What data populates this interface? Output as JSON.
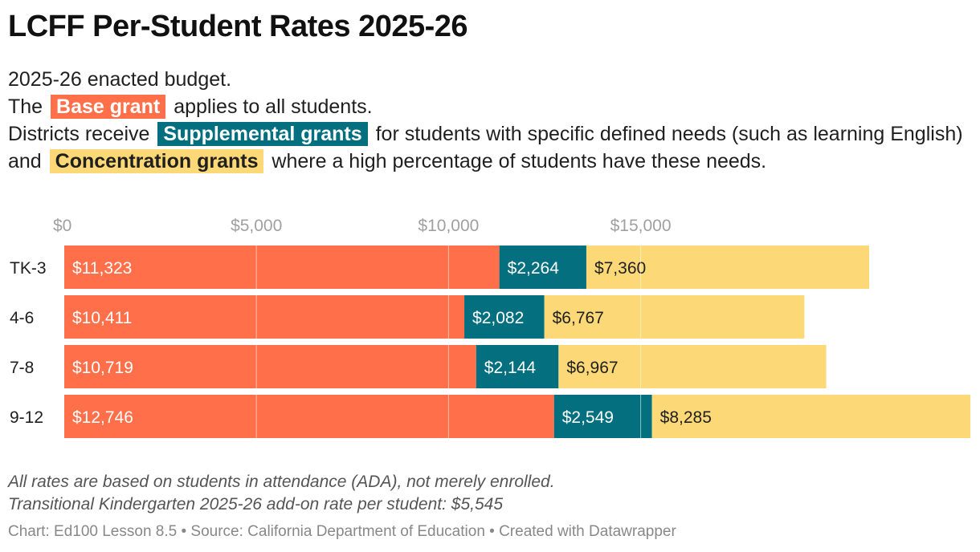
{
  "title": "LCFF Per-Student Rates 2025-26",
  "description": {
    "line1": "2025-26 enacted budget.",
    "line2_pre": "The",
    "line2_highlight": "Base grant",
    "line2_post": "applies to all students.",
    "line3_pre": "Districts receive",
    "line3_highlight": "Supplemental grants",
    "line3_mid": "for students with specific defined needs (such as learning English) and",
    "line3_highlight2": "Concentration grants",
    "line3_post": "where a high percentage of students have these needs."
  },
  "colors": {
    "base": "#ff704a",
    "supplemental": "#04707f",
    "concentration": "#fcd976"
  },
  "chart_data": {
    "type": "bar",
    "orientation": "horizontal",
    "stacked": true,
    "categories": [
      "TK-3",
      "4-6",
      "7-8",
      "9-12"
    ],
    "series": [
      {
        "name": "Base grant",
        "values": [
          11323,
          10411,
          10719,
          12746
        ],
        "labels": [
          "$11,323",
          "$10,411",
          "$10,719",
          "$12,746"
        ]
      },
      {
        "name": "Supplemental grants",
        "values": [
          2264,
          2082,
          2144,
          2549
        ],
        "labels": [
          "$2,264",
          "$2,082",
          "$2,144",
          "$2,549"
        ]
      },
      {
        "name": "Concentration grants",
        "values": [
          7360,
          6767,
          6967,
          8285
        ],
        "labels": [
          "$7,360",
          "$6,767",
          "$6,967",
          "$8,285"
        ]
      }
    ],
    "xticks": [
      0,
      5000,
      10000,
      15000
    ],
    "xtick_labels": [
      "$0",
      "$5,000",
      "$10,000",
      "$15,000"
    ],
    "xlim": [
      0,
      23580
    ],
    "grid": true
  },
  "notes": {
    "line1": "All rates are based on students in attendance (ADA), not merely enrolled.",
    "line2": "Transitional Kindergarten 2025-26 add-on rate per student: $5,545"
  },
  "source": "Chart: Ed100 Lesson 8.5 • Source: California Department of Education • Created with Datawrapper"
}
